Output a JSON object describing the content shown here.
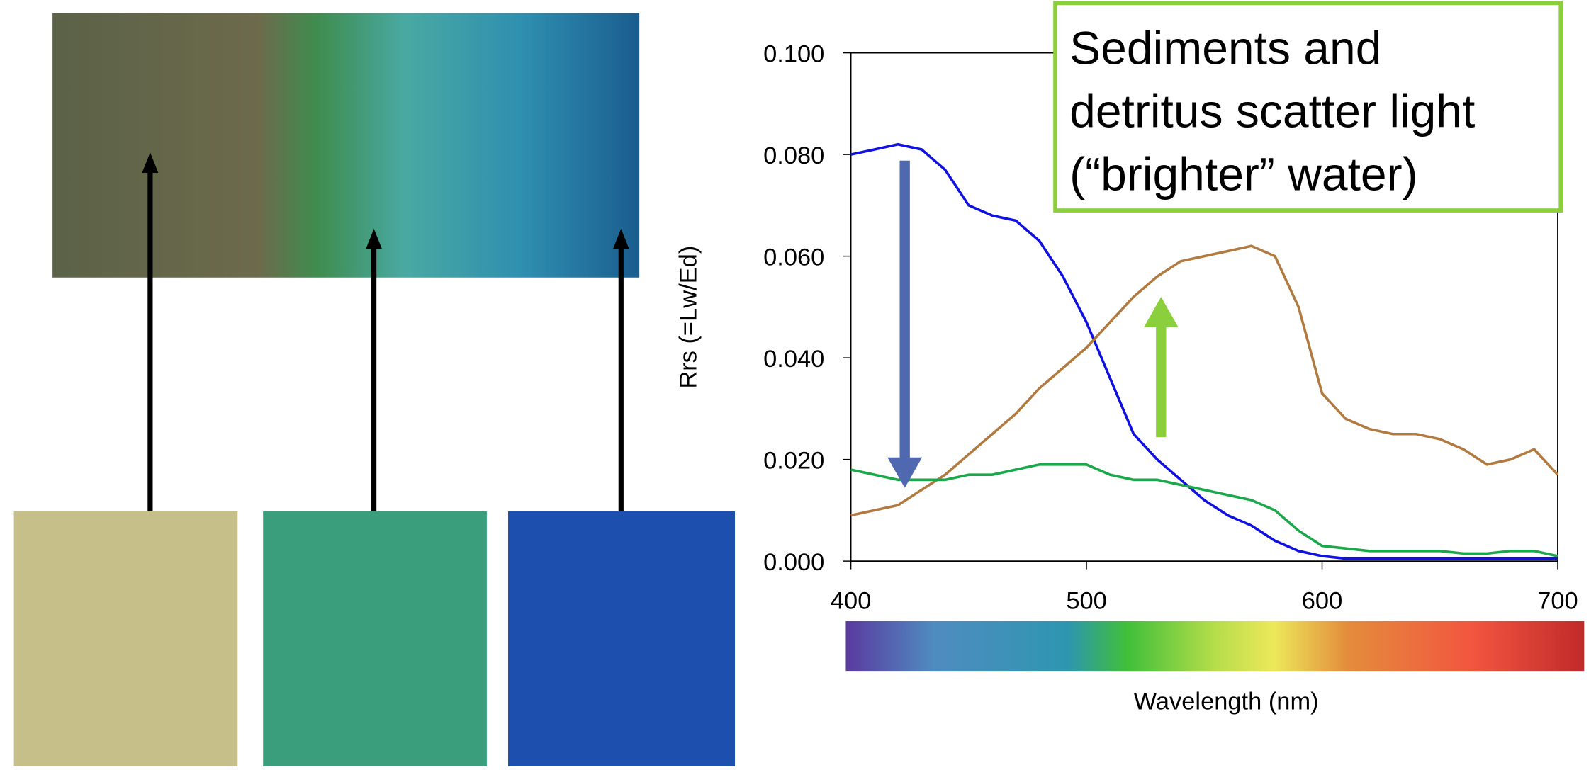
{
  "chart_data": {
    "type": "line",
    "ylabel": "Rrs (=Lw/Ed)",
    "xlabel": "Wavelength (nm)",
    "annotation": [
      "Sediments and",
      "detritus scatter light",
      "(“brighter” water)"
    ],
    "x": [
      400,
      410,
      420,
      430,
      440,
      450,
      460,
      470,
      480,
      490,
      500,
      510,
      520,
      530,
      540,
      550,
      560,
      570,
      580,
      590,
      600,
      610,
      620,
      630,
      640,
      650,
      660,
      670,
      680,
      690,
      700
    ],
    "series": [
      {
        "color": "#1010e0",
        "values": [
          0.08,
          0.081,
          0.082,
          0.081,
          0.077,
          0.07,
          0.068,
          0.067,
          0.063,
          0.056,
          0.047,
          0.036,
          0.025,
          0.02,
          0.016,
          0.012,
          0.009,
          0.007,
          0.004,
          0.002,
          0.001,
          0.0005,
          0.0005,
          0.0005,
          0.0005,
          0.0005,
          0.0005,
          0.0005,
          0.0005,
          0.0005,
          0.0005
        ]
      },
      {
        "color": "#b07a40",
        "values": [
          0.009,
          0.01,
          0.011,
          0.014,
          0.017,
          0.021,
          0.025,
          0.029,
          0.034,
          0.038,
          0.042,
          0.047,
          0.052,
          0.056,
          0.059,
          0.06,
          0.061,
          0.062,
          0.06,
          0.05,
          0.033,
          0.028,
          0.026,
          0.025,
          0.025,
          0.024,
          0.022,
          0.019,
          0.02,
          0.022,
          0.017
        ]
      },
      {
        "color": "#1aa84a",
        "values": [
          0.018,
          0.017,
          0.016,
          0.016,
          0.016,
          0.017,
          0.017,
          0.018,
          0.019,
          0.019,
          0.019,
          0.017,
          0.016,
          0.016,
          0.015,
          0.014,
          0.013,
          0.012,
          0.01,
          0.006,
          0.003,
          0.0025,
          0.002,
          0.002,
          0.002,
          0.002,
          0.0015,
          0.0015,
          0.002,
          0.002,
          0.001
        ]
      }
    ],
    "xlim": [
      400,
      700
    ],
    "xticks": [
      400,
      500,
      600,
      700
    ],
    "ylim": [
      0,
      0.1
    ],
    "yticks": [
      {
        "value": 0,
        "label": "0.000"
      },
      {
        "value": 0.02,
        "label": "0.020"
      },
      {
        "value": 0.04,
        "label": "0.040"
      },
      {
        "value": 0.06,
        "label": "0.060"
      },
      {
        "value": 0.08,
        "label": "0.080"
      },
      {
        "value": 0.1,
        "label": "0.100"
      }
    ]
  }
}
